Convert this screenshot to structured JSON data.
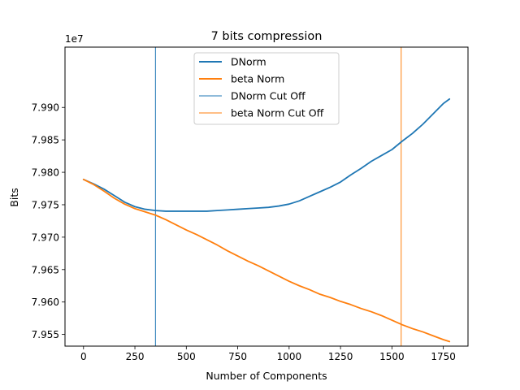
{
  "chart_data": {
    "type": "line",
    "title": "7 bits compression",
    "xlabel": "Number of Components",
    "ylabel": "Bits",
    "y_offset_label": "1e7",
    "xlim": [
      -90,
      1870
    ],
    "ylim": [
      7.9532,
      7.9993
    ],
    "x_ticks": [
      0,
      250,
      500,
      750,
      1000,
      1250,
      1500,
      1750
    ],
    "x_tick_labels": [
      "0",
      "250",
      "500",
      "750",
      "1000",
      "1250",
      "1500",
      "1750"
    ],
    "y_ticks": [
      7.955,
      7.96,
      7.965,
      7.97,
      7.975,
      7.98,
      7.985,
      7.99
    ],
    "y_tick_labels": [
      "7.955",
      "7.960",
      "7.965",
      "7.970",
      "7.975",
      "7.980",
      "7.985",
      "7.990"
    ],
    "grid": false,
    "legend_position": "top-center",
    "series": [
      {
        "name": "DNorm",
        "color": "#1f77b4",
        "x": [
          0,
          50,
          100,
          150,
          200,
          250,
          300,
          350,
          400,
          450,
          500,
          550,
          600,
          650,
          700,
          750,
          800,
          850,
          900,
          950,
          1000,
          1050,
          1100,
          1150,
          1200,
          1250,
          1300,
          1350,
          1400,
          1450,
          1500,
          1550,
          1600,
          1650,
          1700,
          1750,
          1780
        ],
        "values": [
          7.9789,
          7.9782,
          7.9774,
          7.9764,
          7.9754,
          7.9747,
          7.9743,
          7.9741,
          7.974,
          7.974,
          7.974,
          7.974,
          7.974,
          7.9741,
          7.9742,
          7.9743,
          7.9744,
          7.9745,
          7.9746,
          7.9748,
          7.9751,
          7.9756,
          7.9763,
          7.977,
          7.9777,
          7.9785,
          7.9796,
          7.9806,
          7.9817,
          7.9826,
          7.9835,
          7.9848,
          7.986,
          7.9874,
          7.989,
          7.9906,
          7.9913
        ]
      },
      {
        "name": "beta Norm",
        "color": "#ff7f0e",
        "x": [
          0,
          50,
          100,
          150,
          200,
          250,
          300,
          350,
          400,
          450,
          500,
          550,
          600,
          650,
          700,
          750,
          800,
          850,
          900,
          950,
          1000,
          1050,
          1100,
          1150,
          1200,
          1250,
          1300,
          1350,
          1400,
          1450,
          1500,
          1550,
          1600,
          1650,
          1700,
          1750,
          1780
        ],
        "values": [
          7.9789,
          7.9781,
          7.9771,
          7.976,
          7.9751,
          7.9744,
          7.9739,
          7.9734,
          7.9727,
          7.9719,
          7.9711,
          7.9704,
          7.9696,
          7.9688,
          7.9679,
          7.9671,
          7.9663,
          7.9656,
          7.9648,
          7.964,
          7.9632,
          7.9625,
          7.9619,
          7.9612,
          7.9607,
          7.9601,
          7.9596,
          7.959,
          7.9585,
          7.9579,
          7.9572,
          7.9565,
          7.9559,
          7.9554,
          7.9548,
          7.9542,
          7.9539
        ]
      }
    ],
    "vertical_lines": [
      {
        "name": "DNorm Cut Off",
        "x": 350,
        "color": "#1f77b4"
      },
      {
        "name": "beta Norm Cut Off",
        "x": 1545,
        "color": "#ff7f0e"
      }
    ]
  }
}
